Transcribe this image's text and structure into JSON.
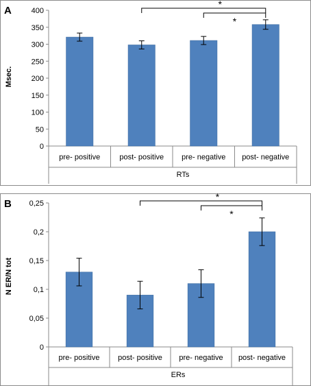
{
  "chart_data": [
    {
      "type": "bar",
      "panel_label": "A",
      "categories": [
        "pre- positive",
        "post- positive",
        "pre- negative",
        "post- negative"
      ],
      "values": [
        321,
        298,
        311,
        358
      ],
      "errors": [
        12,
        12,
        12,
        14
      ],
      "xlabel": "RTs",
      "ylabel": "Msec.",
      "ylim": [
        0,
        400
      ],
      "yticks": [
        "0",
        "50",
        "100",
        "150",
        "200",
        "250",
        "300",
        "350",
        "400"
      ],
      "significance": [
        {
          "from": 1,
          "to": 3,
          "label": "*"
        },
        {
          "from": 2,
          "to": 3,
          "label": "*"
        }
      ],
      "bar_color": "#4f81bd"
    },
    {
      "type": "bar",
      "panel_label": "B",
      "categories": [
        "pre- positive",
        "post- positive",
        "pre- negative",
        "post- negative"
      ],
      "values": [
        0.13,
        0.09,
        0.11,
        0.2
      ],
      "errors": [
        0.024,
        0.024,
        0.024,
        0.024
      ],
      "xlabel": "ERs",
      "ylabel": "N ER/N tot",
      "ylim": [
        0,
        0.25
      ],
      "yticks": [
        "0",
        "0,05",
        "0,1",
        "0,15",
        "0,2",
        "0,25"
      ],
      "significance": [
        {
          "from": 1,
          "to": 3,
          "label": "*"
        },
        {
          "from": 2,
          "to": 3,
          "label": "*"
        }
      ],
      "bar_color": "#4f81bd"
    }
  ]
}
